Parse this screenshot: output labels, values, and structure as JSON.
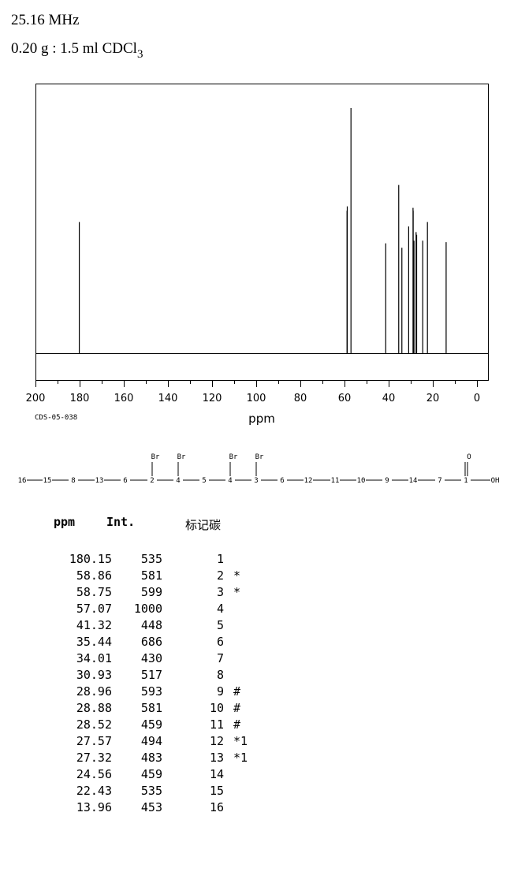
{
  "header": {
    "frequency": "25.16 MHz",
    "sample_prefix": "0.20 g : 1.5 ml CDCl",
    "sample_sub": "3"
  },
  "code": "CDS-05-038",
  "chart_data": {
    "type": "line",
    "xlabel": "ppm",
    "xlim": [
      200,
      0
    ],
    "x_ticks": [
      "200",
      "180",
      "160",
      "140",
      "120",
      "100",
      "80",
      "60",
      "40",
      "20",
      "0"
    ],
    "peaks": [
      {
        "ppm": 180.15,
        "int": 535
      },
      {
        "ppm": 58.86,
        "int": 581
      },
      {
        "ppm": 58.75,
        "int": 599
      },
      {
        "ppm": 57.07,
        "int": 1000
      },
      {
        "ppm": 41.32,
        "int": 448
      },
      {
        "ppm": 35.44,
        "int": 686
      },
      {
        "ppm": 34.01,
        "int": 430
      },
      {
        "ppm": 30.93,
        "int": 517
      },
      {
        "ppm": 28.96,
        "int": 593
      },
      {
        "ppm": 28.88,
        "int": 581
      },
      {
        "ppm": 28.52,
        "int": 459
      },
      {
        "ppm": 27.57,
        "int": 494
      },
      {
        "ppm": 27.32,
        "int": 483
      },
      {
        "ppm": 24.56,
        "int": 459
      },
      {
        "ppm": 22.43,
        "int": 535
      },
      {
        "ppm": 13.96,
        "int": 453
      }
    ]
  },
  "structure": {
    "chain": [
      "16",
      "15",
      "8",
      "13",
      "6",
      "2",
      "4",
      "5",
      "4",
      "3",
      "6",
      "12",
      "11",
      "10",
      "9",
      "14",
      "7",
      "1"
    ],
    "end": "OH",
    "substituents": [
      {
        "index": 5,
        "label": "Br"
      },
      {
        "index": 6,
        "label": "Br"
      },
      {
        "index": 8,
        "label": "Br"
      },
      {
        "index": 9,
        "label": "Br"
      },
      {
        "index": 17,
        "label": "O"
      }
    ]
  },
  "table": {
    "headers": {
      "ppm": "ppm",
      "int": "Int.",
      "label": "标记碳"
    },
    "rows": [
      {
        "ppm": "180.15",
        "int": "535",
        "label": "1",
        "note": ""
      },
      {
        "ppm": "58.86",
        "int": "581",
        "label": "2",
        "note": "*"
      },
      {
        "ppm": "58.75",
        "int": "599",
        "label": "3",
        "note": "*"
      },
      {
        "ppm": "57.07",
        "int": "1000",
        "label": "4",
        "note": ""
      },
      {
        "ppm": "41.32",
        "int": "448",
        "label": "5",
        "note": ""
      },
      {
        "ppm": "35.44",
        "int": "686",
        "label": "6",
        "note": ""
      },
      {
        "ppm": "34.01",
        "int": "430",
        "label": "7",
        "note": ""
      },
      {
        "ppm": "30.93",
        "int": "517",
        "label": "8",
        "note": ""
      },
      {
        "ppm": "28.96",
        "int": "593",
        "label": "9",
        "note": "#"
      },
      {
        "ppm": "28.88",
        "int": "581",
        "label": "10",
        "note": "#"
      },
      {
        "ppm": "28.52",
        "int": "459",
        "label": "11",
        "note": "#"
      },
      {
        "ppm": "27.57",
        "int": "494",
        "label": "12",
        "note": "*1"
      },
      {
        "ppm": "27.32",
        "int": "483",
        "label": "13",
        "note": "*1"
      },
      {
        "ppm": "24.56",
        "int": "459",
        "label": "14",
        "note": ""
      },
      {
        "ppm": "22.43",
        "int": "535",
        "label": "15",
        "note": ""
      },
      {
        "ppm": "13.96",
        "int": "453",
        "label": "16",
        "note": ""
      }
    ]
  }
}
